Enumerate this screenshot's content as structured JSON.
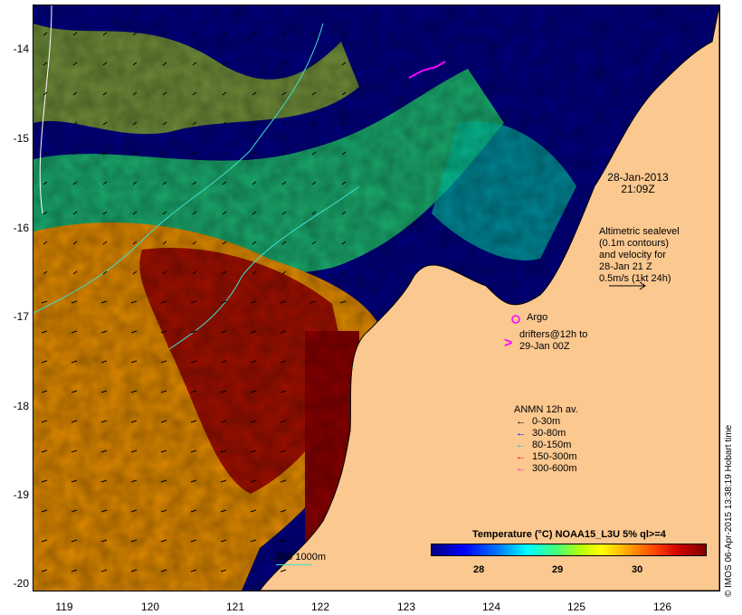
{
  "axes": {
    "y_ticks": [
      "-14",
      "-15",
      "-16",
      "-17",
      "-18",
      "-19",
      "-20"
    ],
    "x_ticks": [
      "119",
      "120",
      "121",
      "122",
      "123",
      "124",
      "125",
      "126"
    ]
  },
  "date": {
    "line1": "28-Jan-2013",
    "line2": "21:09Z"
  },
  "altimetry": {
    "lines": [
      "Altimetric sealevel",
      "(0.1m contours)",
      "and velocity for",
      "28-Jan 21 Z",
      "0.5m/s (1kt 24h)"
    ]
  },
  "argo": {
    "label": "Argo",
    "color": "#ff00ff"
  },
  "drifters": {
    "line1": "drifters@12h to",
    "line2": "29-Jan 00Z",
    "color": "#ff00ff"
  },
  "anmn": {
    "title": "ANMN 12h av.",
    "items": [
      {
        "label": "0-30m",
        "color": "#000000"
      },
      {
        "label": "30-80m",
        "color": "#0000ff"
      },
      {
        "label": "80-150m",
        "color": "#00c0c0"
      },
      {
        "label": "150-300m",
        "color": "#ff0000"
      },
      {
        "label": "300-600m",
        "color": "#ff00ff"
      }
    ]
  },
  "bathymetry": {
    "label": "200  1000m",
    "color": "#40e0d0"
  },
  "colorbar": {
    "title": "Temperature (°C) NOAA15_L3U 5% ql>=4",
    "ticks": [
      "28",
      "29",
      "30"
    ]
  },
  "credit": "© IMOS 06-Apr-2015 13:38:19 Hobart time",
  "colors": {
    "land": "#fbc890",
    "cold": "#00007f",
    "warm": "#800000"
  }
}
